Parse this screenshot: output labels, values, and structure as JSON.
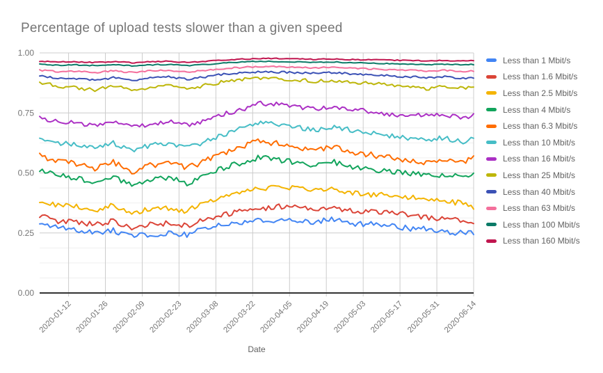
{
  "title": "Percentage of upload tests slower than a given speed",
  "chart_data": {
    "type": "line",
    "title": "Percentage of upload tests slower than a given speed",
    "xlabel": "Date",
    "ylabel": "",
    "ylim": [
      0.0,
      1.0
    ],
    "grid": {
      "major_step": 0.25,
      "minor_step": 0.0625,
      "vertical_every_days": 14
    },
    "legend_position": "right",
    "y_tick_labels": [
      "0.00",
      "0.25",
      "0.50",
      "0.75",
      "1.00"
    ],
    "x_tick_labels": [
      "2020-01-12",
      "2020-01-26",
      "2020-02-09",
      "2020-02-23",
      "2020-03-08",
      "2020-03-22",
      "2020-04-05",
      "2020-04-19",
      "2020-05-03",
      "2020-05-17",
      "2020-05-31",
      "2020-06-14"
    ],
    "x_start_date": "2020-01-01",
    "x_end_date": "2020-06-14",
    "anchor_dates": [
      "2020-01-01",
      "2020-01-08",
      "2020-01-15",
      "2020-01-22",
      "2020-01-29",
      "2020-02-05",
      "2020-02-12",
      "2020-02-19",
      "2020-02-26",
      "2020-03-04",
      "2020-03-11",
      "2020-03-18",
      "2020-03-25",
      "2020-04-01",
      "2020-04-08",
      "2020-04-15",
      "2020-04-22",
      "2020-04-29",
      "2020-05-06",
      "2020-05-13",
      "2020-05-20",
      "2020-05-27",
      "2020-06-03",
      "2020-06-10",
      "2020-06-14"
    ],
    "anchor_day_index": [
      0,
      7,
      14,
      21,
      28,
      35,
      42,
      49,
      56,
      63,
      70,
      77,
      84,
      91,
      98,
      105,
      112,
      119,
      126,
      133,
      140,
      147,
      154,
      161,
      165
    ],
    "series": [
      {
        "name": "Less than 1 Mbit/s",
        "color": "#4285F4",
        "jitter": 0.012,
        "values": [
          0.29,
          0.27,
          0.26,
          0.25,
          0.26,
          0.235,
          0.245,
          0.25,
          0.24,
          0.27,
          0.285,
          0.295,
          0.3,
          0.305,
          0.3,
          0.295,
          0.31,
          0.29,
          0.285,
          0.28,
          0.27,
          0.265,
          0.255,
          0.25,
          0.255
        ]
      },
      {
        "name": "Less than 1.6 Mbit/s",
        "color": "#DB4437",
        "jitter": 0.011,
        "values": [
          0.32,
          0.3,
          0.295,
          0.285,
          0.3,
          0.27,
          0.285,
          0.29,
          0.28,
          0.31,
          0.325,
          0.34,
          0.35,
          0.36,
          0.355,
          0.35,
          0.355,
          0.34,
          0.34,
          0.335,
          0.325,
          0.315,
          0.31,
          0.305,
          0.3
        ]
      },
      {
        "name": "Less than 2.5 Mbit/s",
        "color": "#F4B400",
        "jitter": 0.011,
        "values": [
          0.385,
          0.365,
          0.36,
          0.345,
          0.365,
          0.33,
          0.35,
          0.355,
          0.34,
          0.38,
          0.4,
          0.42,
          0.435,
          0.44,
          0.435,
          0.43,
          0.43,
          0.415,
          0.41,
          0.405,
          0.4,
          0.39,
          0.38,
          0.375,
          0.36
        ]
      },
      {
        "name": "Less than 4 Mbit/s",
        "color": "#12A45C",
        "jitter": 0.012,
        "values": [
          0.51,
          0.49,
          0.48,
          0.46,
          0.48,
          0.45,
          0.47,
          0.48,
          0.455,
          0.49,
          0.52,
          0.545,
          0.565,
          0.555,
          0.545,
          0.53,
          0.545,
          0.52,
          0.515,
          0.51,
          0.5,
          0.49,
          0.485,
          0.49,
          0.5
        ]
      },
      {
        "name": "Less than 6.3 Mbit/s",
        "color": "#FF6D01",
        "jitter": 0.012,
        "values": [
          0.57,
          0.545,
          0.54,
          0.52,
          0.545,
          0.5,
          0.53,
          0.545,
          0.52,
          0.55,
          0.58,
          0.61,
          0.635,
          0.62,
          0.605,
          0.59,
          0.61,
          0.585,
          0.575,
          0.565,
          0.55,
          0.545,
          0.55,
          0.545,
          0.56
        ]
      },
      {
        "name": "Less than 10 Mbit/s",
        "color": "#46BDC6",
        "jitter": 0.01,
        "values": [
          0.65,
          0.625,
          0.62,
          0.605,
          0.625,
          0.595,
          0.615,
          0.625,
          0.605,
          0.63,
          0.66,
          0.69,
          0.715,
          0.7,
          0.69,
          0.675,
          0.695,
          0.675,
          0.665,
          0.655,
          0.645,
          0.64,
          0.645,
          0.63,
          0.645
        ]
      },
      {
        "name": "Less than 16 Mbit/s",
        "color": "#AB30C4",
        "jitter": 0.009,
        "values": [
          0.73,
          0.715,
          0.71,
          0.695,
          0.71,
          0.69,
          0.7,
          0.715,
          0.7,
          0.715,
          0.745,
          0.765,
          0.79,
          0.785,
          0.775,
          0.765,
          0.775,
          0.765,
          0.755,
          0.745,
          0.735,
          0.745,
          0.74,
          0.73,
          0.74
        ]
      },
      {
        "name": "Less than 25 Mbit/s",
        "color": "#BDB60A",
        "jitter": 0.007,
        "values": [
          0.878,
          0.86,
          0.855,
          0.845,
          0.862,
          0.845,
          0.858,
          0.862,
          0.85,
          0.865,
          0.88,
          0.89,
          0.895,
          0.893,
          0.888,
          0.882,
          0.885,
          0.878,
          0.872,
          0.868,
          0.858,
          0.85,
          0.86,
          0.852,
          0.858
        ]
      },
      {
        "name": "Less than 40 Mbit/s",
        "color": "#3B51B5",
        "jitter": 0.004,
        "values": [
          0.905,
          0.895,
          0.893,
          0.886,
          0.897,
          0.885,
          0.895,
          0.9,
          0.89,
          0.9,
          0.912,
          0.918,
          0.922,
          0.92,
          0.918,
          0.915,
          0.918,
          0.912,
          0.908,
          0.905,
          0.9,
          0.898,
          0.9,
          0.895,
          0.897
        ]
      },
      {
        "name": "Less than 63 Mbit/s",
        "color": "#F4709C",
        "jitter": 0.003,
        "values": [
          0.928,
          0.922,
          0.924,
          0.918,
          0.926,
          0.918,
          0.925,
          0.928,
          0.92,
          0.928,
          0.935,
          0.94,
          0.944,
          0.942,
          0.94,
          0.938,
          0.94,
          0.936,
          0.933,
          0.93,
          0.928,
          0.925,
          0.927,
          0.923,
          0.925
        ]
      },
      {
        "name": "Less than 100 Mbit/s",
        "color": "#0B7A67",
        "jitter": 0.002,
        "values": [
          0.952,
          0.949,
          0.95,
          0.947,
          0.951,
          0.946,
          0.95,
          0.952,
          0.947,
          0.952,
          0.958,
          0.962,
          0.965,
          0.964,
          0.962,
          0.96,
          0.962,
          0.959,
          0.957,
          0.955,
          0.953,
          0.951,
          0.953,
          0.95,
          0.952
        ]
      },
      {
        "name": "Less than 160 Mbit/s",
        "color": "#C0164F",
        "jitter": 0.002,
        "values": [
          0.965,
          0.962,
          0.963,
          0.96,
          0.964,
          0.959,
          0.963,
          0.965,
          0.96,
          0.965,
          0.97,
          0.974,
          0.977,
          0.976,
          0.975,
          0.973,
          0.975,
          0.972,
          0.971,
          0.97,
          0.968,
          0.967,
          0.968,
          0.966,
          0.968
        ]
      }
    ],
    "style": {
      "title_color": "#757575",
      "tick_label_color": "#757575",
      "axis_title_color": "#616161",
      "major_grid_color": "#cccccc",
      "minor_grid_color": "#efefef",
      "baseline_color": "#333333",
      "background": "#ffffff"
    }
  }
}
